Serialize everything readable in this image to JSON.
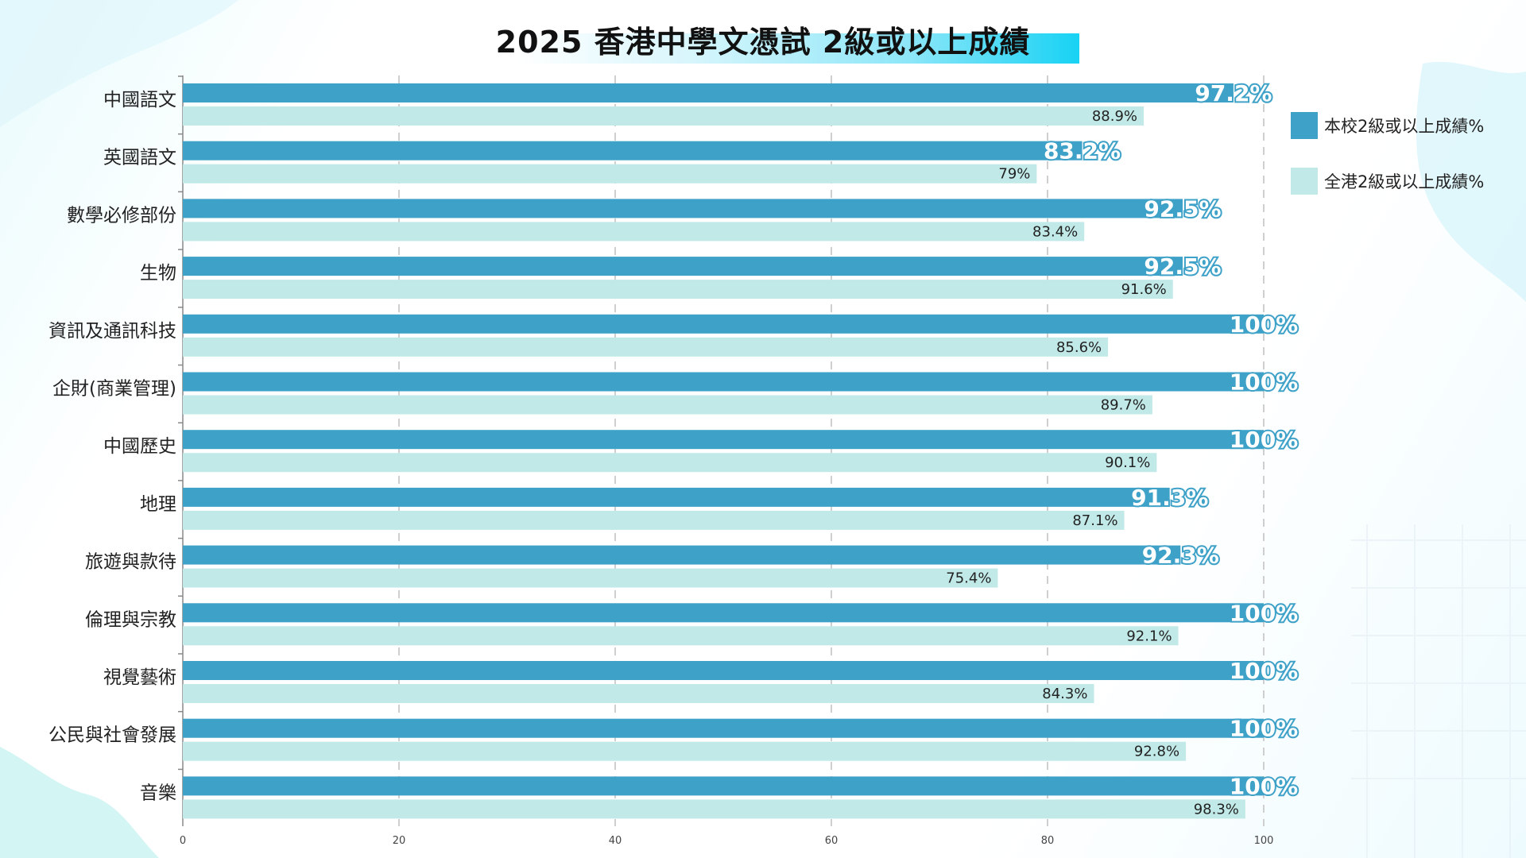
{
  "colors": {
    "school": "#3ea1c8",
    "hk": "#c0e9e8",
    "label_outline": "#3ea1c8",
    "grid": "#cfcfcf"
  },
  "chart_data": {
    "type": "bar",
    "orientation": "horizontal",
    "title": "2025 香港中學文憑試 2級或以上成績",
    "categories": [
      "中國語文",
      "英國語文",
      "數學必修部份",
      "生物",
      "資訊及通訊科技",
      "企財(商業管理)",
      "中國歷史",
      "地理",
      "旅遊與款待",
      "倫理與宗教",
      "視覺藝術",
      "公民與社會發展",
      "音樂"
    ],
    "series": [
      {
        "name": "本校2級或以上成績%",
        "values": [
          97.2,
          83.2,
          92.5,
          92.5,
          100,
          100,
          100,
          91.3,
          92.3,
          100,
          100,
          100,
          100
        ],
        "labels": [
          "97.2%",
          "83.2%",
          "92.5%",
          "92.5%",
          "100%",
          "100%",
          "100%",
          "91.3%",
          "92.3%",
          "100%",
          "100%",
          "100%",
          "100%"
        ]
      },
      {
        "name": "全港2級或以上成績%",
        "values": [
          88.9,
          79,
          83.4,
          91.6,
          85.6,
          89.7,
          90.1,
          87.1,
          75.4,
          92.1,
          84.3,
          92.8,
          98.3
        ],
        "labels": [
          "88.9%",
          "79%",
          "83.4%",
          "91.6%",
          "85.6%",
          "89.7%",
          "90.1%",
          "87.1%",
          "75.4%",
          "92.1%",
          "84.3%",
          "92.8%",
          "98.3%"
        ]
      }
    ],
    "xlim": [
      0,
      100
    ],
    "xticks": [
      0,
      20,
      40,
      60,
      80,
      100
    ],
    "grid": true,
    "legend_position": "right"
  }
}
